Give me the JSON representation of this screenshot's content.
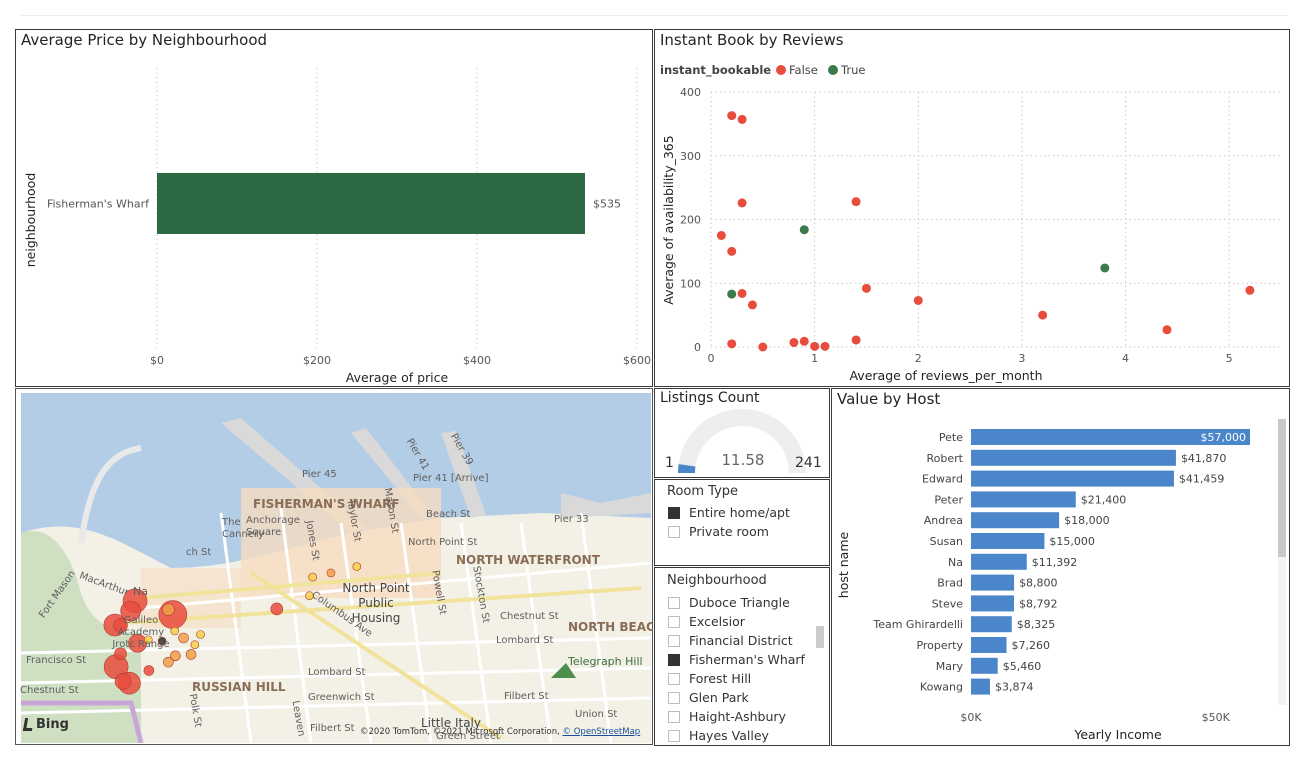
{
  "colors": {
    "bar_green": "#2d6a43",
    "false_red": "#e84c3d",
    "true_green": "#3c7a4d",
    "host_bar_blue": "#4a86c9",
    "gauge_fill": "#4a86c9",
    "gauge_track": "#eeeeee",
    "map_water": "#b4cde6",
    "map_land": "#f3f0e6"
  },
  "avg_price": {
    "title": "Average Price by Neighbourhood",
    "chart_data": {
      "type": "bar",
      "orientation": "horizontal",
      "categories": [
        "Fisherman's Wharf"
      ],
      "values": [
        535
      ],
      "value_labels": [
        "$535"
      ],
      "xlabel": "Average of price",
      "ylabel": "neighbourhood",
      "xlim": [
        0,
        600
      ],
      "x_ticks": [
        0,
        200,
        400,
        600
      ],
      "x_tick_labels": [
        "$0",
        "$200",
        "$400",
        "$600"
      ],
      "grid": true
    }
  },
  "instant_book": {
    "title": "Instant Book by Reviews",
    "legend_title": "instant_bookable",
    "legend": [
      {
        "name": "False",
        "color": "#e84c3d"
      },
      {
        "name": "True",
        "color": "#3c7a4d"
      }
    ],
    "chart_data": {
      "type": "scatter",
      "xlabel": "Average of reviews_per_month",
      "ylabel": "Average of availability_365",
      "xlim": [
        0,
        5.5
      ],
      "ylim": [
        0,
        400
      ],
      "x_ticks": [
        0,
        1,
        2,
        3,
        4,
        5
      ],
      "y_ticks": [
        0,
        100,
        200,
        300,
        400
      ],
      "grid": true,
      "legend_position": "top-left",
      "series": [
        {
          "name": "False",
          "color": "#e84c3d",
          "points": [
            {
              "x": 0.2,
              "y": 363
            },
            {
              "x": 0.3,
              "y": 357
            },
            {
              "x": 0.3,
              "y": 226
            },
            {
              "x": 0.1,
              "y": 175
            },
            {
              "x": 0.2,
              "y": 150
            },
            {
              "x": 0.3,
              "y": 84
            },
            {
              "x": 0.4,
              "y": 66
            },
            {
              "x": 0.2,
              "y": 5
            },
            {
              "x": 0.5,
              "y": 0
            },
            {
              "x": 0.8,
              "y": 7
            },
            {
              "x": 0.9,
              "y": 9
            },
            {
              "x": 1.0,
              "y": 1
            },
            {
              "x": 1.1,
              "y": 1
            },
            {
              "x": 1.4,
              "y": 228
            },
            {
              "x": 1.5,
              "y": 92
            },
            {
              "x": 1.4,
              "y": 11
            },
            {
              "x": 2.0,
              "y": 73
            },
            {
              "x": 3.2,
              "y": 50
            },
            {
              "x": 4.4,
              "y": 27
            },
            {
              "x": 5.2,
              "y": 89
            }
          ]
        },
        {
          "name": "True",
          "color": "#3c7a4d",
          "points": [
            {
              "x": 0.9,
              "y": 184
            },
            {
              "x": 0.2,
              "y": 83
            },
            {
              "x": 3.8,
              "y": 124
            }
          ]
        }
      ]
    }
  },
  "map": {
    "bing_label": "Bing",
    "copyright_label": "©2020 TomTom, ©2021 Microsoft Corporation, ",
    "osm_label": "© OpenStreetMap",
    "labels": {
      "fishermans_wharf": "FISHERMAN'S WHARF",
      "north_waterfront": "NORTH WATERFRONT",
      "north_beach": "NORTH BEAC",
      "russian_hill": "RUSSIAN HILL",
      "pier45": "Pier 45",
      "pier41": "Pier 41",
      "pier39": "Pier 39",
      "pier41_arrive": "Pier 41 [Arrive]",
      "pier33": "Pier 33",
      "cannery": "The Cannery",
      "anchorage": "Anchorage Square",
      "beach_st": "Beach St",
      "north_point_st": "North Point St",
      "north_point_housing": "North Point Public Housing",
      "galileo": "Galileo Academy Jrotc Range",
      "fort_mason": "Fort Mason",
      "macarthur": "MacArthur",
      "francisco_st": "Francisco St",
      "chestnut_st": "Chestnut St",
      "chestnut_st2": "Chestnut St",
      "lombard_st": "Lombard St",
      "lombard_st2": "Lombard St",
      "greenwich_st": "Greenwich St",
      "filbert_st": "Filbert St",
      "filbert_st2": "Filbert St",
      "union_st": "Union St",
      "green_st": "Green Street",
      "little_italy": "Little Italy",
      "telegraph_hill": "Telegraph Hill",
      "polk_st": "Polk St",
      "leavenworth": "Leaven",
      "jones_st": "Jones St",
      "taylor_st": "Taylor St",
      "mason_st": "Mason St",
      "powell_st": "Powell St",
      "stockton_st": "Stockton St",
      "columbus_ave": "Columbus Ave",
      "ch_st": "ch St",
      "na": "Na"
    },
    "bubbles_note": "listing markers",
    "bubbles": [
      {
        "lon": 0.241,
        "lat": 0.633,
        "r": 14,
        "color": "#e84c3d"
      },
      {
        "lon": 0.181,
        "lat": 0.594,
        "r": 12,
        "color": "#e84c3d"
      },
      {
        "lon": 0.174,
        "lat": 0.623,
        "r": 10,
        "color": "#e84c3d"
      },
      {
        "lon": 0.149,
        "lat": 0.663,
        "r": 11,
        "color": "#e84c3d"
      },
      {
        "lon": 0.158,
        "lat": 0.664,
        "r": 7,
        "color": "#e84c3d"
      },
      {
        "lon": 0.185,
        "lat": 0.715,
        "r": 9,
        "color": "#e84c3d"
      },
      {
        "lon": 0.151,
        "lat": 0.782,
        "r": 12,
        "color": "#e84c3d"
      },
      {
        "lon": 0.172,
        "lat": 0.829,
        "r": 11,
        "color": "#e84c3d"
      },
      {
        "lon": 0.162,
        "lat": 0.824,
        "r": 8,
        "color": "#e84c3d"
      },
      {
        "lon": 0.158,
        "lat": 0.745,
        "r": 6,
        "color": "#e84c3d"
      },
      {
        "lon": 0.203,
        "lat": 0.793,
        "r": 5,
        "color": "#e84c3d"
      },
      {
        "lon": 0.406,
        "lat": 0.617,
        "r": 6,
        "color": "#e84c3d"
      },
      {
        "lon": 0.27,
        "lat": 0.747,
        "r": 5,
        "color": "#f0a048"
      },
      {
        "lon": 0.245,
        "lat": 0.751,
        "r": 5,
        "color": "#f0a048"
      },
      {
        "lon": 0.234,
        "lat": 0.769,
        "r": 5,
        "color": "#f0a048"
      },
      {
        "lon": 0.234,
        "lat": 0.619,
        "r": 6,
        "color": "#f0a048"
      },
      {
        "lon": 0.258,
        "lat": 0.7,
        "r": 5,
        "color": "#f0a048"
      },
      {
        "lon": 0.202,
        "lat": 0.705,
        "r": 4,
        "color": "#f5d04a"
      },
      {
        "lon": 0.244,
        "lat": 0.68,
        "r": 4,
        "color": "#f5d04a"
      },
      {
        "lon": 0.285,
        "lat": 0.69,
        "r": 4,
        "color": "#f5d04a"
      },
      {
        "lon": 0.276,
        "lat": 0.719,
        "r": 4,
        "color": "#f5d04a"
      },
      {
        "lon": 0.463,
        "lat": 0.526,
        "r": 4,
        "color": "#f5d04a"
      },
      {
        "lon": 0.492,
        "lat": 0.514,
        "r": 4,
        "color": "#f0a048"
      },
      {
        "lon": 0.458,
        "lat": 0.579,
        "r": 4,
        "color": "#f5d04a"
      },
      {
        "lon": 0.533,
        "lat": 0.496,
        "r": 4,
        "color": "#f5d04a"
      },
      {
        "lon": 0.224,
        "lat": 0.709,
        "r": 4,
        "color": "#2b2b2b"
      }
    ]
  },
  "listings": {
    "title": "Listings Count",
    "value": "11.58",
    "min": "1",
    "max": "241",
    "fill_fraction": 0.044
  },
  "room_type": {
    "title": "Room Type",
    "items": [
      {
        "label": "Entire home/apt",
        "checked": true
      },
      {
        "label": "Private room",
        "checked": false
      }
    ]
  },
  "neighbourhood": {
    "title": "Neighbourhood",
    "items": [
      {
        "label": "Duboce Triangle",
        "checked": false
      },
      {
        "label": "Excelsior",
        "checked": false
      },
      {
        "label": "Financial District",
        "checked": false
      },
      {
        "label": "Fisherman's Wharf",
        "checked": true
      },
      {
        "label": "Forest Hill",
        "checked": false
      },
      {
        "label": "Glen Park",
        "checked": false
      },
      {
        "label": "Haight-Ashbury",
        "checked": false
      },
      {
        "label": "Hayes Valley",
        "checked": false
      }
    ]
  },
  "value_by_host": {
    "title": "Value by Host",
    "chart_data": {
      "type": "bar",
      "orientation": "horizontal",
      "categories": [
        "Pete",
        "Robert",
        "Edward",
        "Peter",
        "Andrea",
        "Susan",
        "Na",
        "Brad",
        "Steve",
        "Team Ghirardelli",
        "Property",
        "Mary",
        "Kowang"
      ],
      "values": [
        57000,
        41870,
        41459,
        21400,
        18000,
        15000,
        11392,
        8800,
        8792,
        8325,
        7260,
        5460,
        3874
      ],
      "value_labels": [
        "$57,000",
        "$41,870",
        "$41,459",
        "$21,400",
        "$18,000",
        "$15,000",
        "$11,392",
        "$8,800",
        "$8,792",
        "$8,325",
        "$7,260",
        "$5,460",
        "$3,874"
      ],
      "xlabel": "Yearly Income",
      "ylabel": "host name",
      "xlim": [
        0,
        57000
      ],
      "x_ticks": [
        0,
        50000
      ],
      "x_tick_labels": [
        "$0K",
        "$50K"
      ]
    }
  }
}
